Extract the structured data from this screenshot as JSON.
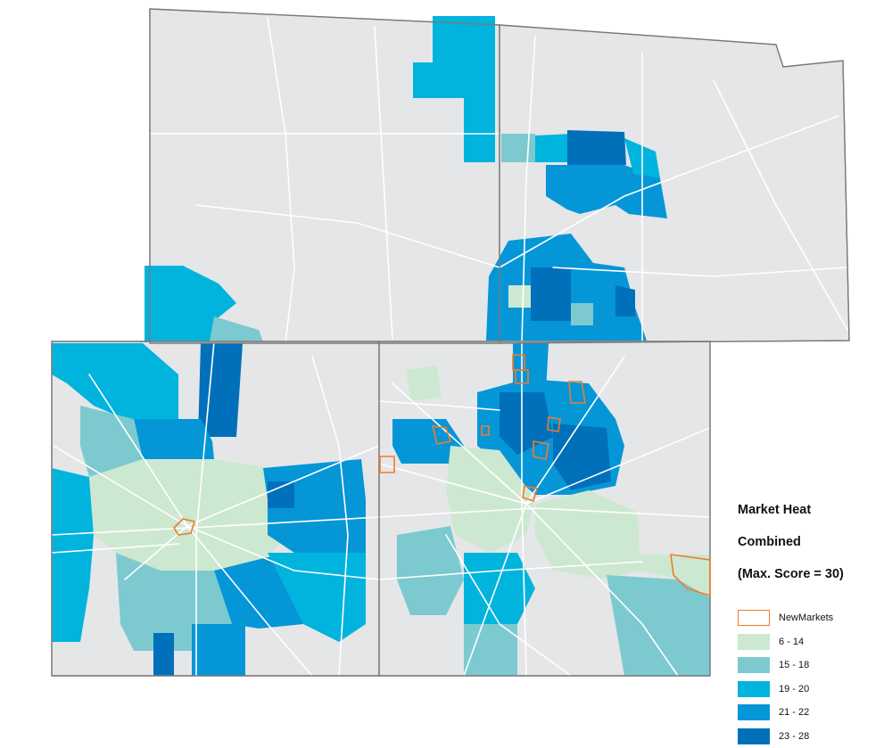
{
  "legend": {
    "title_line1": "Market Heat",
    "title_line2": "Combined",
    "title_line3": "(Max. Score = 30)",
    "items": [
      {
        "label": "NewMarkets",
        "fill": "#ffffff",
        "stroke": "#f07c2a",
        "outline": true
      },
      {
        "label": "6 - 14",
        "fill": "#cde8d0"
      },
      {
        "label": "15 - 18",
        "fill": "#7ccad0"
      },
      {
        "label": "19 - 20",
        "fill": "#00b4dd"
      },
      {
        "label": "21 - 22",
        "fill": "#0596d8"
      },
      {
        "label": "23 - 28",
        "fill": "#0070bb"
      }
    ]
  },
  "colors": {
    "base": "#e5e6e8",
    "county_border": "#7a7a7a",
    "roads": "#ffffff",
    "new_markets": "#f07c2a"
  }
}
